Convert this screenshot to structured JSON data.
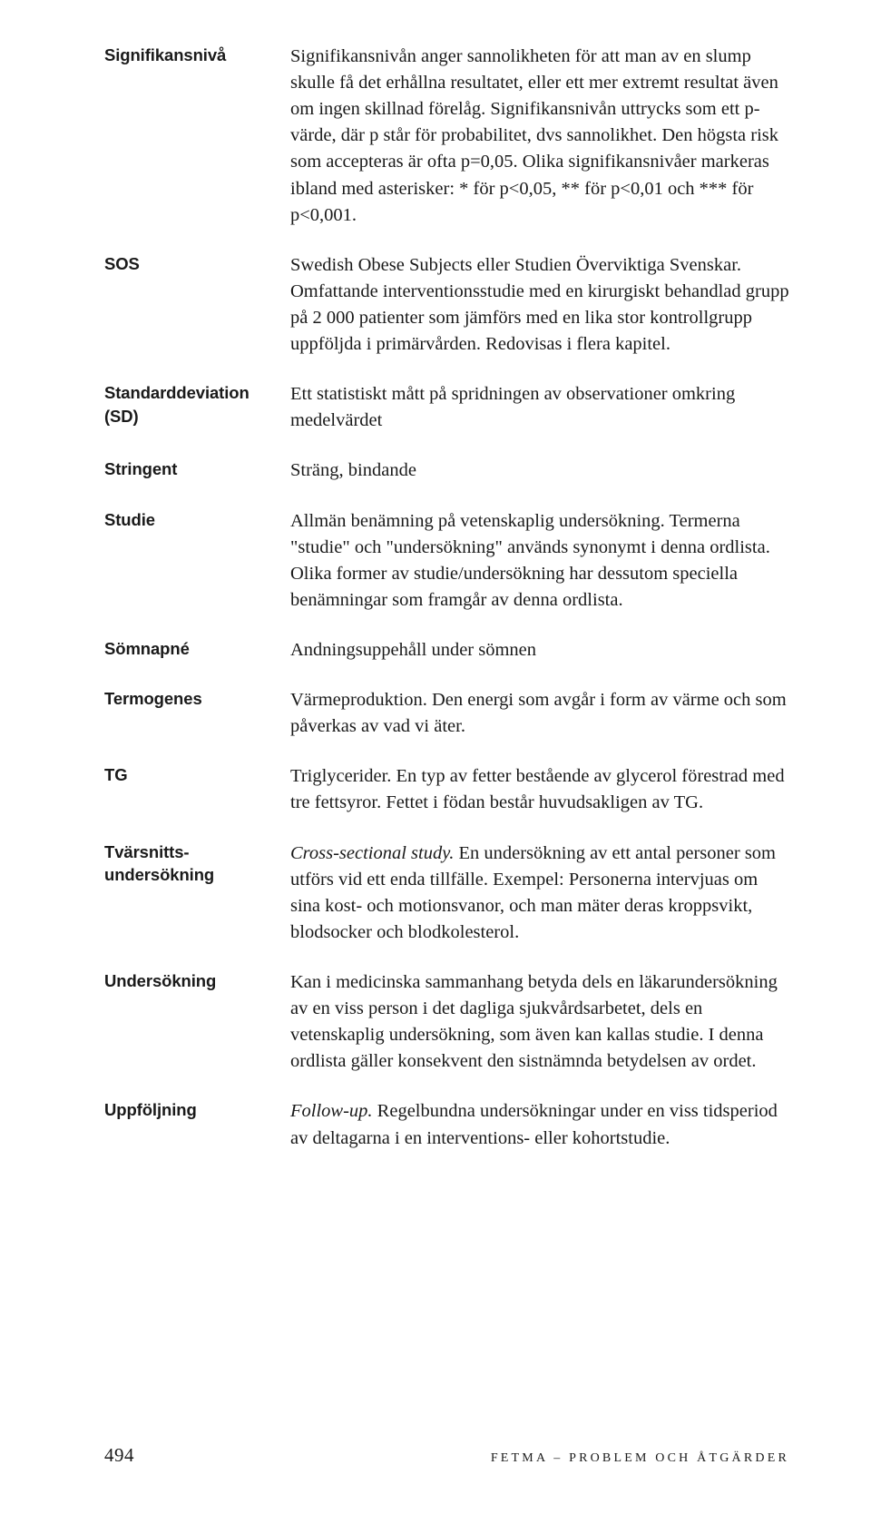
{
  "entries": [
    {
      "term": "Signifikansnivå",
      "def": "Signifikansnivån anger sannolikheten för att man av en slump skulle få det erhållna resultatet, eller ett mer extremt resultat även om ingen skillnad förelåg. Signifikansnivån uttrycks som ett p-värde, där p står för probabilitet, dvs sannolikhet. Den högsta risk som accepteras är ofta p=0,05. Olika signifikansnivåer markeras ibland med asterisker: * för p<0,05, ** för p<0,01 och *** för p<0,001."
    },
    {
      "term": "SOS",
      "def": "Swedish Obese Subjects eller Studien Överviktiga Svenskar. Omfattande interventionsstudie med en kirurgiskt behandlad grupp på 2 000 patienter som jämförs med en lika stor kontrollgrupp uppföljda i primärvården. Redovisas i flera kapitel."
    },
    {
      "term": "Standarddeviation (SD)",
      "def": "Ett statistiskt mått på spridningen av observationer omkring medelvärdet"
    },
    {
      "term": "Stringent",
      "def": "Sträng, bindande"
    },
    {
      "term": "Studie",
      "def": "Allmän benämning på vetenskaplig undersökning. Termerna \"studie\" och \"undersökning\" används synonymt i denna ordlista. Olika former av studie/undersökning har dessutom speciella benämningar som framgår av denna ordlista."
    },
    {
      "term": "Sömnapné",
      "def": "Andningsuppehåll under sömnen"
    },
    {
      "term": "Termogenes",
      "def": "Värmeproduktion. Den energi som avgår i form av värme och som påverkas av vad vi äter."
    },
    {
      "term": "TG",
      "def": "Triglycerider. En typ av fetter bestående av glycerol förestrad med tre fettsyror. Fettet i födan består huvudsakligen av TG."
    },
    {
      "term": "Tvärsnitts­undersökning",
      "def_italic": "Cross-sectional study.",
      "def_rest": " En undersökning av ett antal personer som utförs vid ett enda tillfälle. Exempel: Personerna intervjuas om sina kost- och motionsvanor, och man mäter deras kroppsvikt, blodsocker och blodkolesterol."
    },
    {
      "term": "Undersökning",
      "def": "Kan i medicinska sammanhang betyda dels en läkarundersökning av en viss person i det dagliga sjukvårdsarbetet, dels en vetenskaplig undersökning, som även kan kallas studie. I denna ordlista gäller konsekvent den sistnämnda betydelsen av ordet."
    },
    {
      "term": "Uppföljning",
      "def_italic": "Follow-up.",
      "def_rest": " Regelbundna undersökningar under en viss tidsperiod av deltagarna i en interventions- eller kohortstudie."
    }
  ],
  "footer": {
    "page": "494",
    "title": "FETMA – PROBLEM OCH ÅTGÄRDER"
  }
}
